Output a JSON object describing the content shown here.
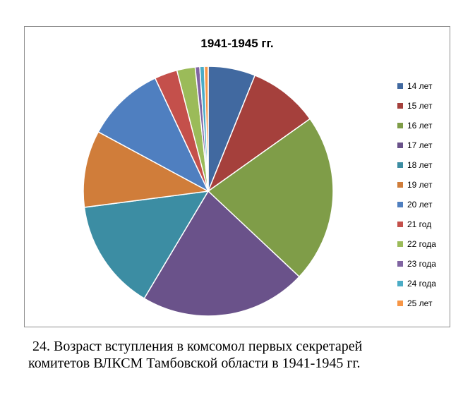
{
  "chart_data": {
    "type": "pie",
    "title": "1941-1945 гг.",
    "categories": [
      "14 лет",
      "15 лет",
      "16 лет",
      "17 лет",
      "18 лет",
      "19 лет",
      "20 лет",
      "21 год",
      "22 года",
      "23 года",
      "24 года",
      "25 лет"
    ],
    "values": [
      6.2,
      9.2,
      22.2,
      21.9,
      14.6,
      10.1,
      10.3,
      3.0,
      2.4,
      0.6,
      0.6,
      0.5
    ],
    "colors": [
      "#4169A0",
      "#A5403C",
      "#7F9D48",
      "#6A528A",
      "#3C8DA3",
      "#D07D3A",
      "#4F7FC0",
      "#C4504B",
      "#9BBB59",
      "#8064A2",
      "#4BACC6",
      "#F79646"
    ],
    "legend_position": "right"
  },
  "caption": {
    "line1": "24. Возраст вступления в комсомол первых секретарей",
    "line2": "комитетов ВЛКСМ Тамбовской области в 1941-1945 гг."
  }
}
